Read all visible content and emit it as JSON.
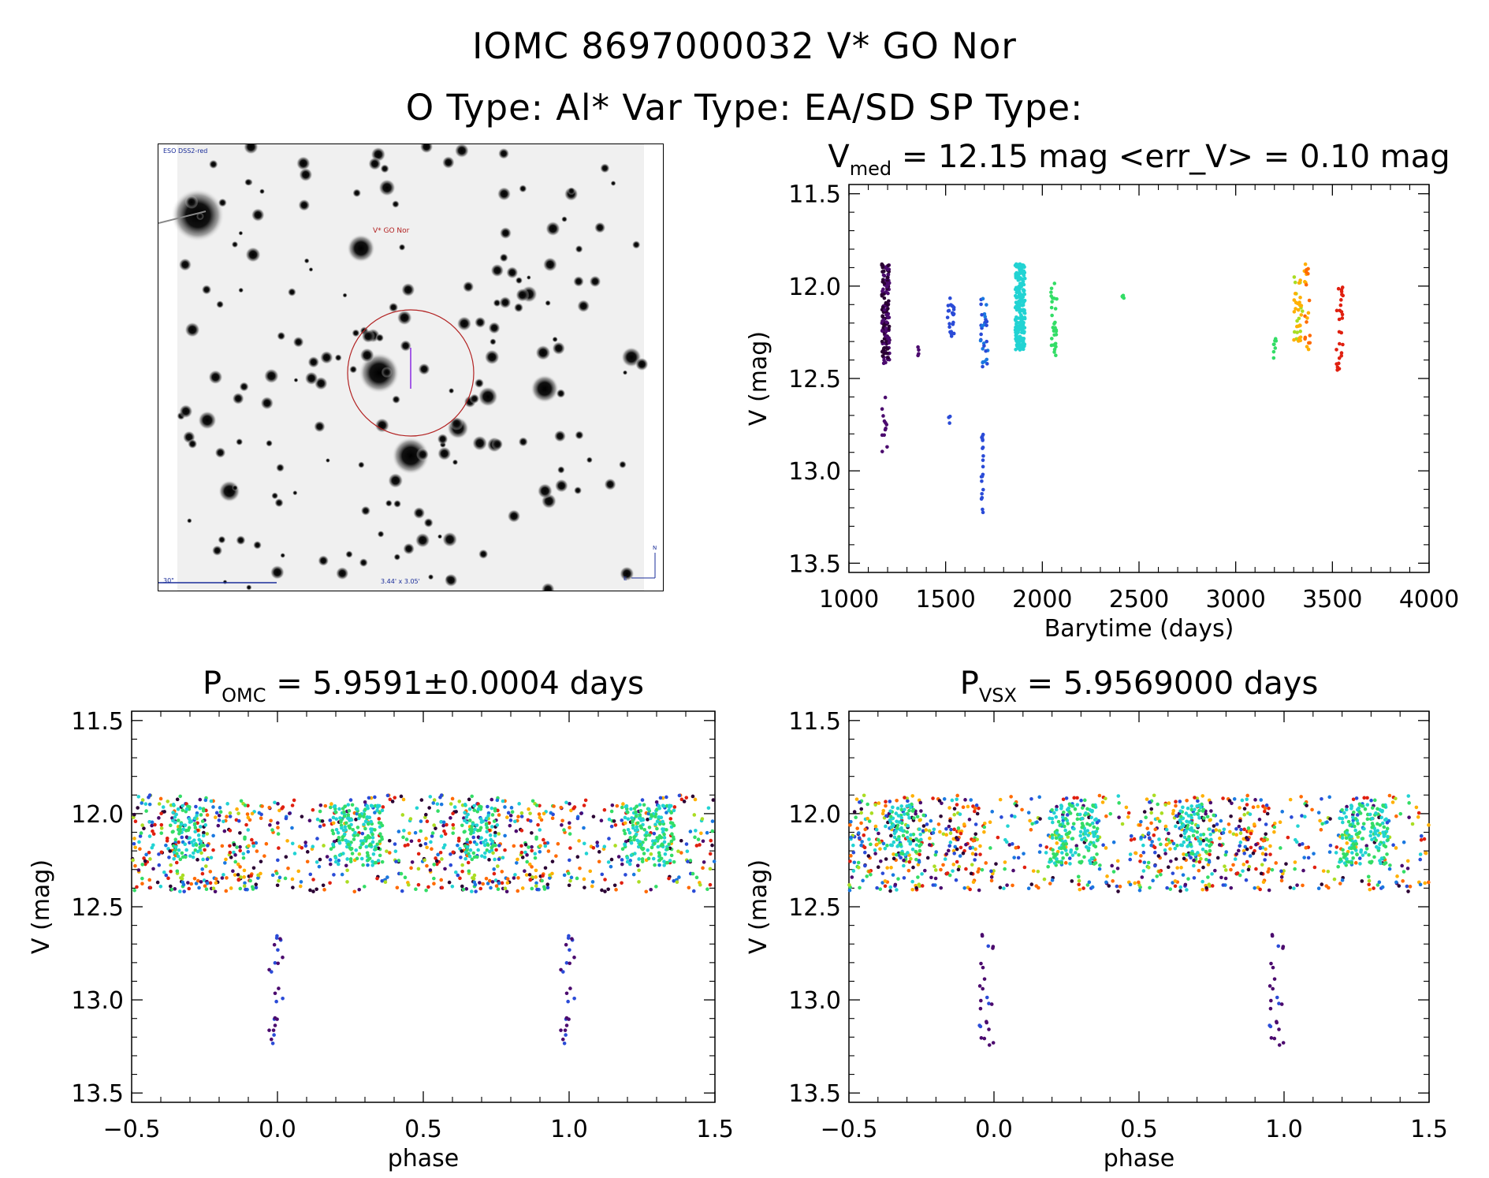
{
  "header": {
    "title_line1": "IOMC 8697000032   V* GO Nor",
    "title_line2": "O Type: Al*  Var Type: EA/SD  SP Type:"
  },
  "finder_chart": {
    "survey_label": "ESO DSS2-red",
    "target_label": "V* GO Nor",
    "scale_label": "30\"",
    "fov_label": "3.44' x 3.05'",
    "north_label": "N",
    "east_label": "E"
  },
  "colors": {
    "axis": "#000000",
    "circle": "#b22222",
    "palette": [
      "#2a0033",
      "#4b0a6e",
      "#2a4bd7",
      "#1a78e0",
      "#22d3d3",
      "#33dd66",
      "#aadd22",
      "#ffb000",
      "#ff6a00",
      "#e02010"
    ]
  },
  "chart_data": [
    {
      "id": "lightcurve",
      "type": "scatter",
      "title": {
        "main": "V",
        "sub": "med",
        "rest": " = 12.15 mag <err_V> = 0.10 mag"
      },
      "xlabel": "Barytime (days)",
      "ylabel": "V (mag)",
      "xlim": [
        1000,
        4000
      ],
      "ylim": [
        13.55,
        11.45
      ],
      "xticks": [
        1000,
        1500,
        2000,
        2500,
        3000,
        3500,
        4000
      ],
      "xtick_labels": [
        "1000",
        "1500",
        "2000",
        "2500",
        "3000",
        "3500",
        "4000"
      ],
      "yticks": [
        11.5,
        12.0,
        12.5,
        13.0,
        13.5
      ],
      "ytick_labels": [
        "11.5",
        "12.0",
        "12.5",
        "13.0",
        "13.5"
      ],
      "clusters": [
        {
          "x": [
            1170,
            1210
          ],
          "y": [
            11.88,
            12.42
          ],
          "n": 150,
          "colors": [
            0,
            1
          ]
        },
        {
          "x": [
            1170,
            1200
          ],
          "y": [
            12.6,
            12.92
          ],
          "n": 12,
          "colors": [
            1
          ]
        },
        {
          "x": [
            1355,
            1365
          ],
          "y": [
            12.3,
            12.38
          ],
          "n": 4,
          "colors": [
            1
          ]
        },
        {
          "x": [
            1510,
            1545
          ],
          "y": [
            12.05,
            12.28
          ],
          "n": 25,
          "colors": [
            2
          ]
        },
        {
          "x": [
            1515,
            1525
          ],
          "y": [
            12.68,
            12.75
          ],
          "n": 3,
          "colors": [
            2
          ]
        },
        {
          "x": [
            1680,
            1720
          ],
          "y": [
            12.05,
            12.45
          ],
          "n": 30,
          "colors": [
            2,
            3
          ]
        },
        {
          "x": [
            1685,
            1695
          ],
          "y": [
            12.8,
            13.25
          ],
          "n": 20,
          "colors": [
            2
          ]
        },
        {
          "x": [
            1860,
            1910
          ],
          "y": [
            11.88,
            12.35
          ],
          "n": 220,
          "colors": [
            4
          ]
        },
        {
          "x": [
            2045,
            2075
          ],
          "y": [
            11.98,
            12.38
          ],
          "n": 30,
          "colors": [
            5
          ]
        },
        {
          "x": [
            2410,
            2425
          ],
          "y": [
            12.04,
            12.1
          ],
          "n": 4,
          "colors": [
            5
          ]
        },
        {
          "x": [
            3195,
            3210
          ],
          "y": [
            12.28,
            12.42
          ],
          "n": 8,
          "colors": [
            5
          ]
        },
        {
          "x": [
            3300,
            3345
          ],
          "y": [
            11.95,
            12.3
          ],
          "n": 35,
          "colors": [
            6,
            7
          ]
        },
        {
          "x": [
            3355,
            3385
          ],
          "y": [
            11.88,
            12.35
          ],
          "n": 22,
          "colors": [
            7,
            8
          ]
        },
        {
          "x": [
            3520,
            3555
          ],
          "y": [
            12.0,
            12.47
          ],
          "n": 28,
          "colors": [
            9
          ]
        }
      ]
    },
    {
      "id": "phase_omc",
      "type": "scatter",
      "title": {
        "main": "P",
        "sub": "OMC",
        "rest": " = 5.9591±0.0004 days"
      },
      "xlabel": "phase",
      "ylabel": "V (mag)",
      "xlim": [
        -0.5,
        1.5
      ],
      "ylim": [
        13.55,
        11.45
      ],
      "xticks": [
        -0.5,
        0.0,
        0.5,
        1.0,
        1.5
      ],
      "xtick_labels": [
        "−0.5",
        "0.0",
        "0.5",
        "1.0",
        "1.5"
      ],
      "yticks": [
        11.5,
        12.0,
        12.5,
        13.0,
        13.5
      ],
      "ytick_labels": [
        "11.5",
        "12.0",
        "12.5",
        "13.0",
        "13.5"
      ],
      "phase_clusters": [
        {
          "x": [
            -0.5,
            0.95
          ],
          "y": [
            11.9,
            12.42
          ],
          "n": 480,
          "colors": [
            0,
            1,
            2,
            3,
            4,
            5,
            6,
            7,
            8,
            9
          ]
        },
        {
          "x": [
            0.19,
            0.36
          ],
          "y": [
            11.95,
            12.28
          ],
          "n": 160,
          "colors": [
            4,
            5
          ]
        },
        {
          "x": [
            -0.36,
            -0.25
          ],
          "y": [
            11.95,
            12.25
          ],
          "n": 80,
          "colors": [
            4,
            5
          ]
        },
        {
          "x": [
            -0.03,
            0.02
          ],
          "y": [
            12.62,
            13.25
          ],
          "n": 24,
          "colors": [
            2,
            1
          ]
        }
      ]
    },
    {
      "id": "phase_vsx",
      "type": "scatter",
      "title": {
        "main": "P",
        "sub": "VSX",
        "rest": " = 5.9569000 days"
      },
      "xlabel": "phase",
      "ylabel": "V (mag)",
      "xlim": [
        -0.5,
        1.5
      ],
      "ylim": [
        13.55,
        11.45
      ],
      "xticks": [
        -0.5,
        0.0,
        0.5,
        1.0,
        1.5
      ],
      "xtick_labels": [
        "−0.5",
        "0.0",
        "0.5",
        "1.0",
        "1.5"
      ],
      "yticks": [
        11.5,
        12.0,
        12.5,
        13.0,
        13.5
      ],
      "ytick_labels": [
        "11.5",
        "12.0",
        "12.5",
        "13.0",
        "13.5"
      ],
      "phase_clusters": [
        {
          "x": [
            -0.5,
            0.95
          ],
          "y": [
            11.9,
            12.42
          ],
          "n": 480,
          "colors": [
            0,
            1,
            2,
            3,
            4,
            5,
            6,
            7,
            8,
            9
          ]
        },
        {
          "x": [
            0.19,
            0.36
          ],
          "y": [
            11.95,
            12.28
          ],
          "n": 160,
          "colors": [
            4,
            5
          ]
        },
        {
          "x": [
            -0.36,
            -0.25
          ],
          "y": [
            11.95,
            12.25
          ],
          "n": 80,
          "colors": [
            4,
            5
          ]
        },
        {
          "x": [
            -0.05,
            0.0
          ],
          "y": [
            12.62,
            13.25
          ],
          "n": 24,
          "colors": [
            2,
            1
          ]
        }
      ]
    }
  ]
}
